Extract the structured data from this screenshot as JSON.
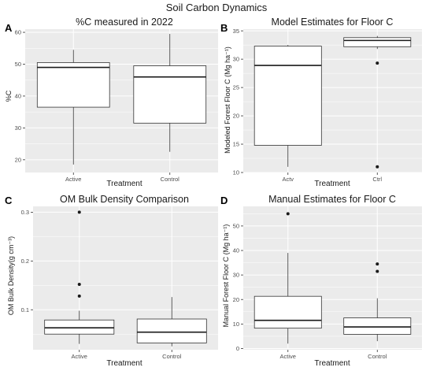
{
  "figure_title": "Soil Carbon Dynamics",
  "colors": {
    "panel_background": "#ebebeb",
    "gridline": "#ffffff",
    "box_fill": "#ffffff",
    "box_stroke": "#333333",
    "outlier": "#1a1a1a",
    "tick_text": "#4d4d4d"
  },
  "chart_data": [
    {
      "panel_label": "A",
      "type": "boxplot",
      "title": "%C measured in 2022",
      "xlabel": "Treatment",
      "ylabel": "%C",
      "categories": [
        "Active",
        "Control"
      ],
      "ylim": [
        16,
        61
      ],
      "yticks": [
        20,
        30,
        40,
        50,
        60
      ],
      "boxes": [
        {
          "category": "Active",
          "whisker_low": 18.5,
          "q1": 36.5,
          "median": 49,
          "q3": 50.5,
          "whisker_high": 54.5,
          "outliers": []
        },
        {
          "category": "Control",
          "whisker_low": 22.5,
          "q1": 31.5,
          "median": 46,
          "q3": 49.5,
          "whisker_high": 59.5,
          "outliers": []
        }
      ]
    },
    {
      "panel_label": "B",
      "type": "boxplot",
      "title": "Model Estimates for Floor C",
      "xlabel": "Treatment",
      "ylabel": "Modeled Forest Floor C (Mg ha⁻¹)",
      "categories": [
        "Actv",
        "Ctrl"
      ],
      "ylim": [
        10,
        35.3
      ],
      "yticks": [
        10,
        15,
        20,
        25,
        30,
        35
      ],
      "boxes": [
        {
          "category": "Actv",
          "whisker_low": 11,
          "q1": 14.8,
          "median": 28.9,
          "q3": 32.3,
          "whisker_high": 32.5,
          "outliers": []
        },
        {
          "category": "Ctrl",
          "whisker_low": 31.8,
          "q1": 32.2,
          "median": 33.3,
          "q3": 33.8,
          "whisker_high": 34.1,
          "outliers": [
            29.3,
            11
          ]
        }
      ]
    },
    {
      "panel_label": "C",
      "type": "boxplot",
      "title": "OM Bulk Density Comparison",
      "xlabel": "Treatment",
      "ylabel": "OM Bulk Density(g cm⁻³)",
      "categories": [
        "Active",
        "Control"
      ],
      "ylim": [
        0.018,
        0.312
      ],
      "yticks": [
        0.1,
        0.2,
        0.3
      ],
      "ytick_labels": [
        "0.1",
        "0.2",
        "0.3"
      ],
      "boxes": [
        {
          "category": "Active",
          "whisker_low": 0.03,
          "q1": 0.05,
          "median": 0.063,
          "q3": 0.079,
          "whisker_high": 0.098,
          "outliers": [
            0.3,
            0.152,
            0.128
          ]
        },
        {
          "category": "Control",
          "whisker_low": 0.025,
          "q1": 0.032,
          "median": 0.054,
          "q3": 0.081,
          "whisker_high": 0.126,
          "outliers": []
        }
      ]
    },
    {
      "panel_label": "D",
      "type": "boxplot",
      "title": "Manual Estimates for Floor C",
      "xlabel": "Treatment",
      "ylabel": "Manual Forest Floor C (Mg ha⁻¹)",
      "categories": [
        "Active",
        "Control"
      ],
      "ylim": [
        -0.5,
        58
      ],
      "yticks": [
        0,
        10,
        20,
        30,
        40,
        50
      ],
      "boxes": [
        {
          "category": "Active",
          "whisker_low": 2,
          "q1": 8.3,
          "median": 11.5,
          "q3": 21.3,
          "whisker_high": 39,
          "outliers": [
            55
          ]
        },
        {
          "category": "Control",
          "whisker_low": 3,
          "q1": 5.8,
          "median": 8.8,
          "q3": 12.5,
          "whisker_high": 20.5,
          "outliers": [
            34.5,
            31.5
          ]
        }
      ]
    }
  ]
}
